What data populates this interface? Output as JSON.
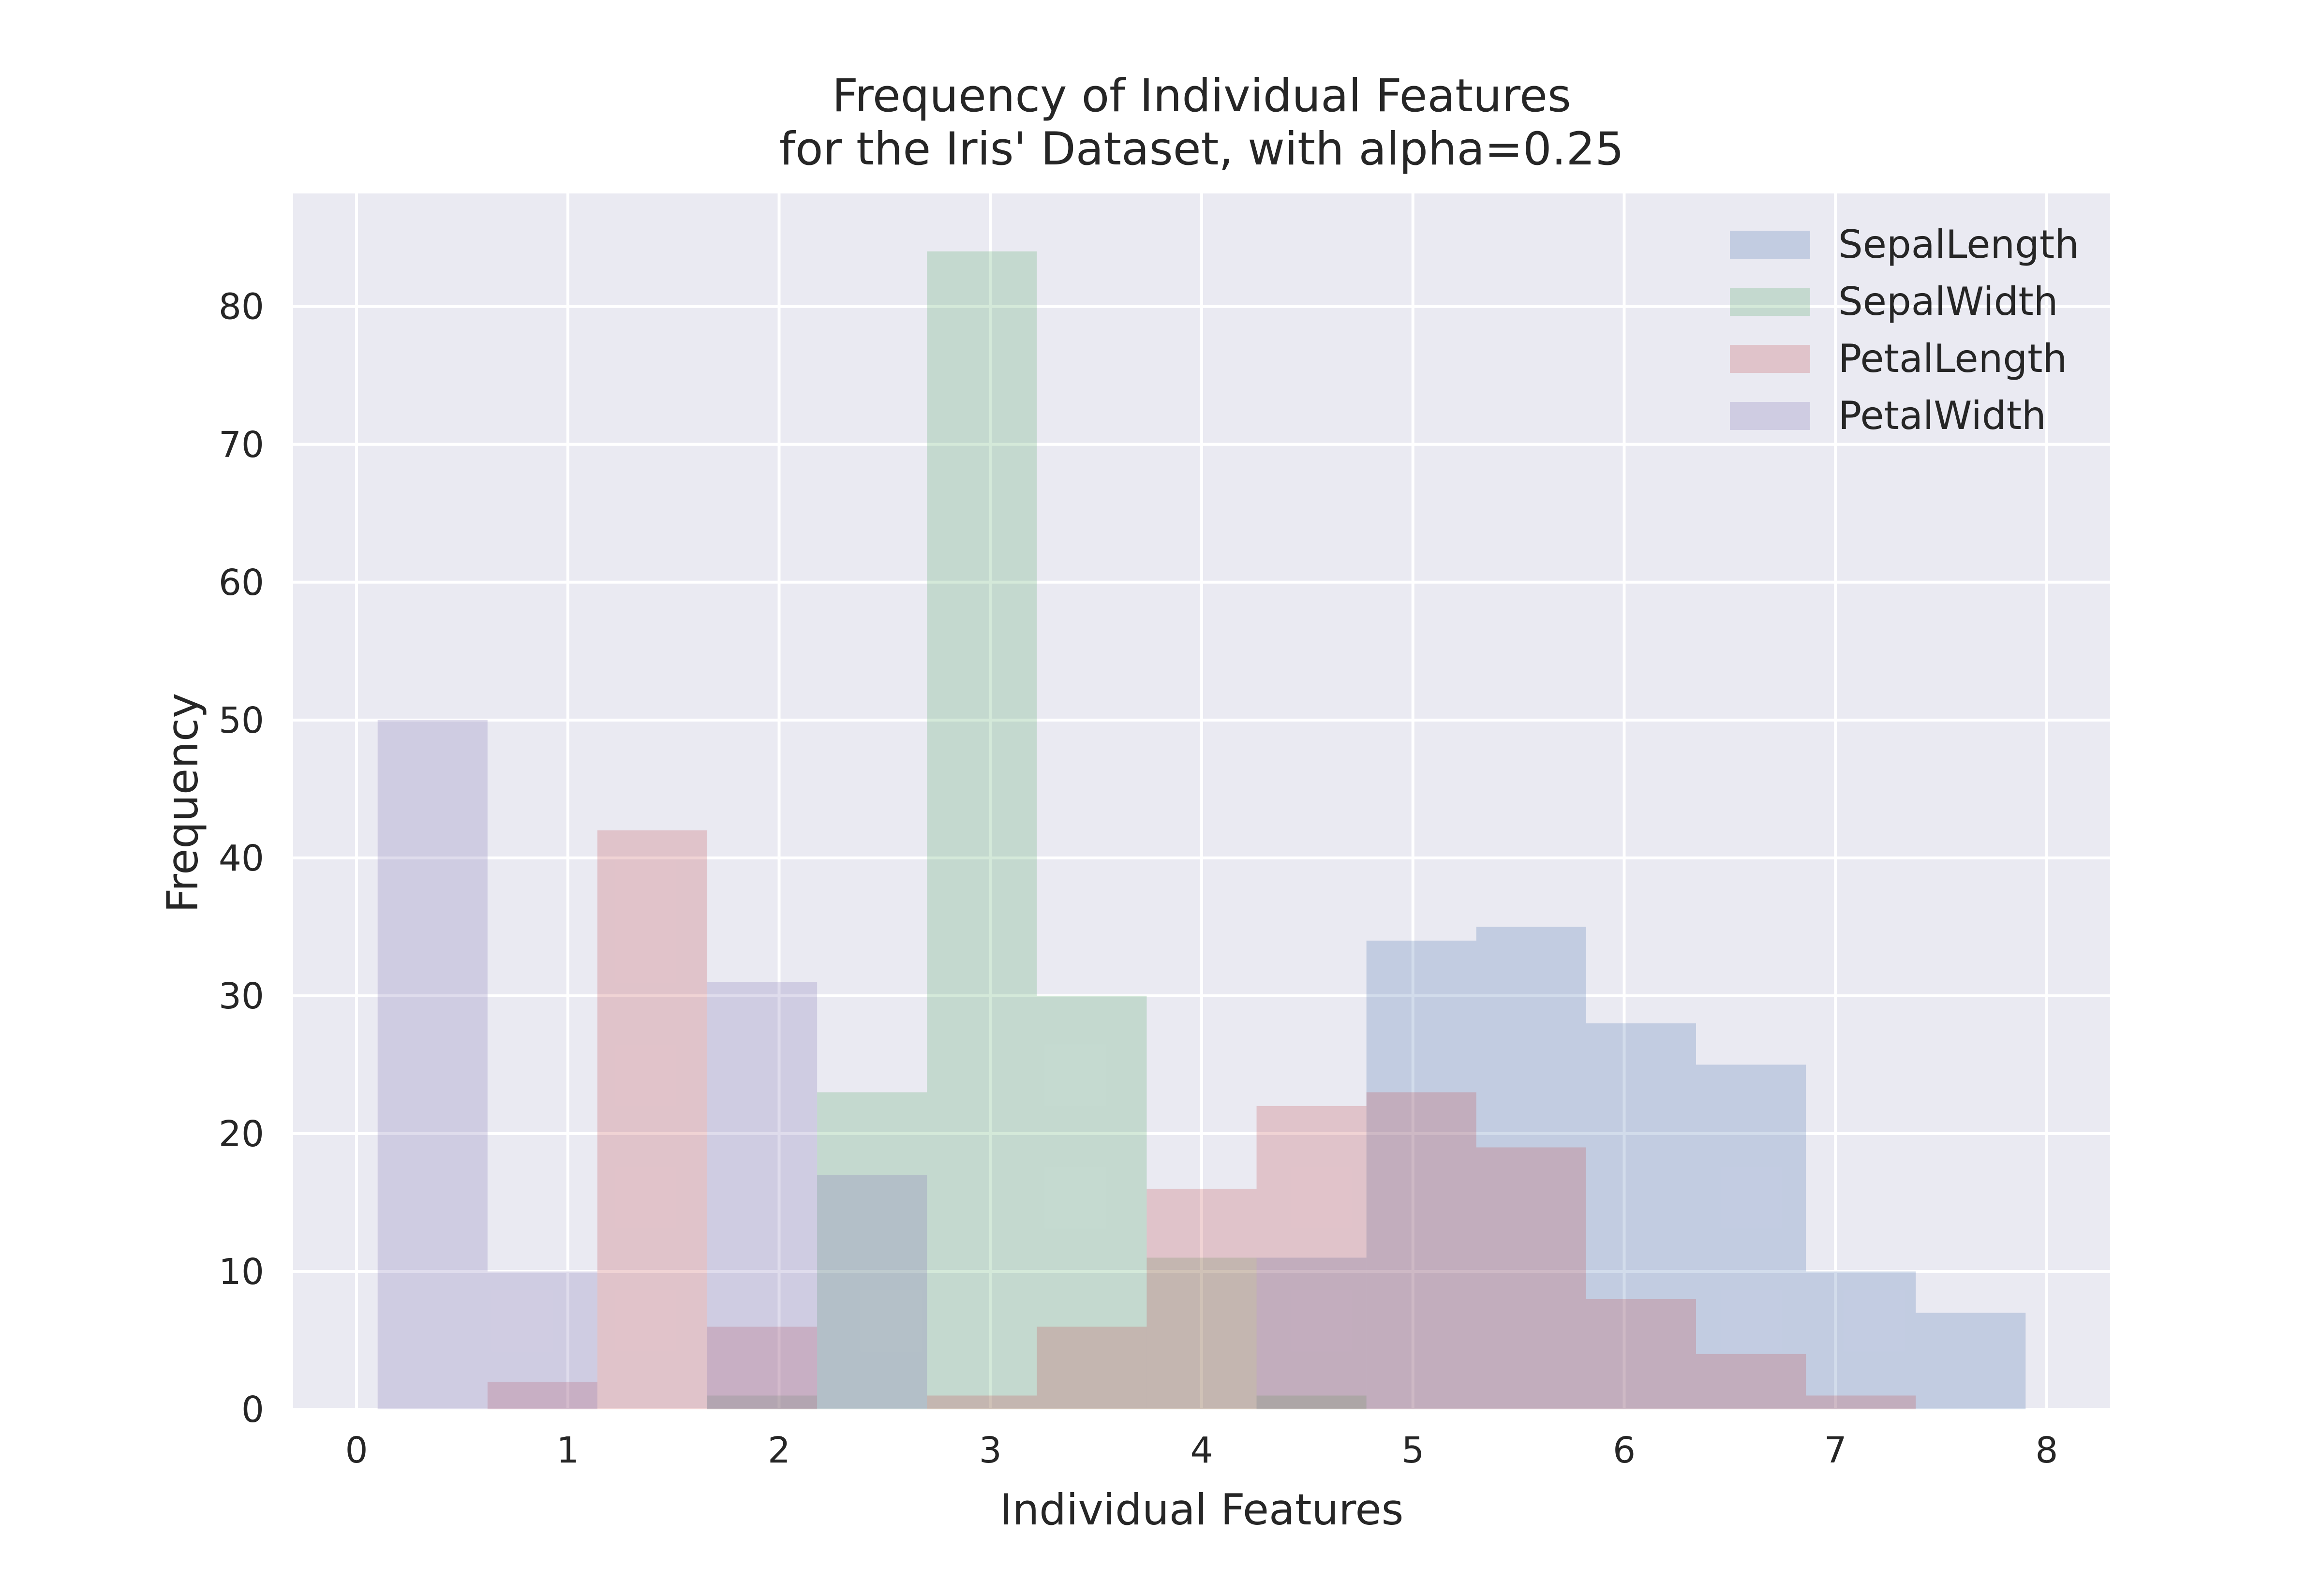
{
  "chart_data": {
    "type": "bar",
    "title_lines": [
      "Frequency of Individual Features",
      "for the Iris' Dataset, with alpha=0.25"
    ],
    "xlabel": "Individual Features",
    "ylabel": "Frequency",
    "xlim": [
      -0.3,
      8.3
    ],
    "ylim": [
      0,
      88.2
    ],
    "xticks": [
      "0",
      "1",
      "2",
      "3",
      "4",
      "5",
      "6",
      "7",
      "8"
    ],
    "yticks": [
      "0",
      "10",
      "20",
      "30",
      "40",
      "50",
      "60",
      "70",
      "80"
    ],
    "grid": true,
    "legend_position": "top-right",
    "alpha": 0.25,
    "series": [
      {
        "name": "SepalLength",
        "color": "#4c72b0",
        "bins": [
          [
            0.1,
            0.62,
            0
          ],
          [
            0.62,
            1.14,
            0
          ],
          [
            1.14,
            1.66,
            0
          ],
          [
            1.66,
            2.18,
            0
          ],
          [
            2.18,
            2.7,
            0
          ],
          [
            2.7,
            3.22,
            0
          ],
          [
            3.22,
            3.74,
            0
          ],
          [
            3.74,
            4.26,
            0
          ],
          [
            4.26,
            4.78,
            11
          ],
          [
            4.78,
            5.3,
            34
          ],
          [
            5.3,
            5.82,
            35
          ],
          [
            5.82,
            6.34,
            28
          ],
          [
            6.34,
            6.86,
            25
          ],
          [
            6.86,
            7.38,
            10
          ],
          [
            7.38,
            7.9,
            7
          ]
        ]
      },
      {
        "name": "SepalWidth",
        "color": "#55a868",
        "bins": [
          [
            0.1,
            0.62,
            0
          ],
          [
            0.62,
            1.14,
            0
          ],
          [
            1.14,
            1.66,
            0
          ],
          [
            1.66,
            2.18,
            1
          ],
          [
            2.18,
            2.7,
            23
          ],
          [
            2.7,
            3.22,
            84
          ],
          [
            3.22,
            3.74,
            30
          ],
          [
            3.74,
            4.26,
            11
          ],
          [
            4.26,
            4.78,
            1
          ],
          [
            4.78,
            5.3,
            0
          ],
          [
            5.3,
            5.82,
            0
          ],
          [
            5.82,
            6.34,
            0
          ],
          [
            6.34,
            6.86,
            0
          ],
          [
            6.86,
            7.38,
            0
          ],
          [
            7.38,
            7.9,
            0
          ]
        ]
      },
      {
        "name": "PetalLength",
        "color": "#c44e52",
        "bins": [
          [
            0.1,
            0.62,
            0
          ],
          [
            0.62,
            1.14,
            2
          ],
          [
            1.14,
            1.66,
            42
          ],
          [
            1.66,
            2.18,
            6
          ],
          [
            2.18,
            2.7,
            0
          ],
          [
            2.7,
            3.22,
            1
          ],
          [
            3.22,
            3.74,
            6
          ],
          [
            3.74,
            4.26,
            16
          ],
          [
            4.26,
            4.78,
            22
          ],
          [
            4.78,
            5.3,
            23
          ],
          [
            5.3,
            5.82,
            19
          ],
          [
            5.82,
            6.34,
            8
          ],
          [
            6.34,
            6.86,
            4
          ],
          [
            6.86,
            7.38,
            1
          ],
          [
            7.38,
            7.9,
            0
          ]
        ]
      },
      {
        "name": "PetalWidth",
        "color": "#8172b2",
        "bins": [
          [
            0.1,
            0.62,
            50
          ],
          [
            0.62,
            1.14,
            10
          ],
          [
            1.14,
            1.66,
            0
          ],
          [
            1.66,
            2.18,
            31
          ],
          [
            2.18,
            2.7,
            17
          ],
          [
            2.7,
            3.22,
            0
          ],
          [
            3.22,
            3.74,
            0
          ],
          [
            3.74,
            4.26,
            0
          ],
          [
            4.26,
            4.78,
            0
          ],
          [
            4.78,
            5.3,
            0
          ],
          [
            5.3,
            5.82,
            0
          ],
          [
            5.82,
            6.34,
            0
          ],
          [
            6.34,
            6.86,
            0
          ],
          [
            6.86,
            7.38,
            0
          ],
          [
            7.38,
            7.9,
            0
          ]
        ]
      }
    ]
  },
  "style": {
    "axes_background": "#eaeaf2",
    "grid_color": "#ffffff"
  }
}
